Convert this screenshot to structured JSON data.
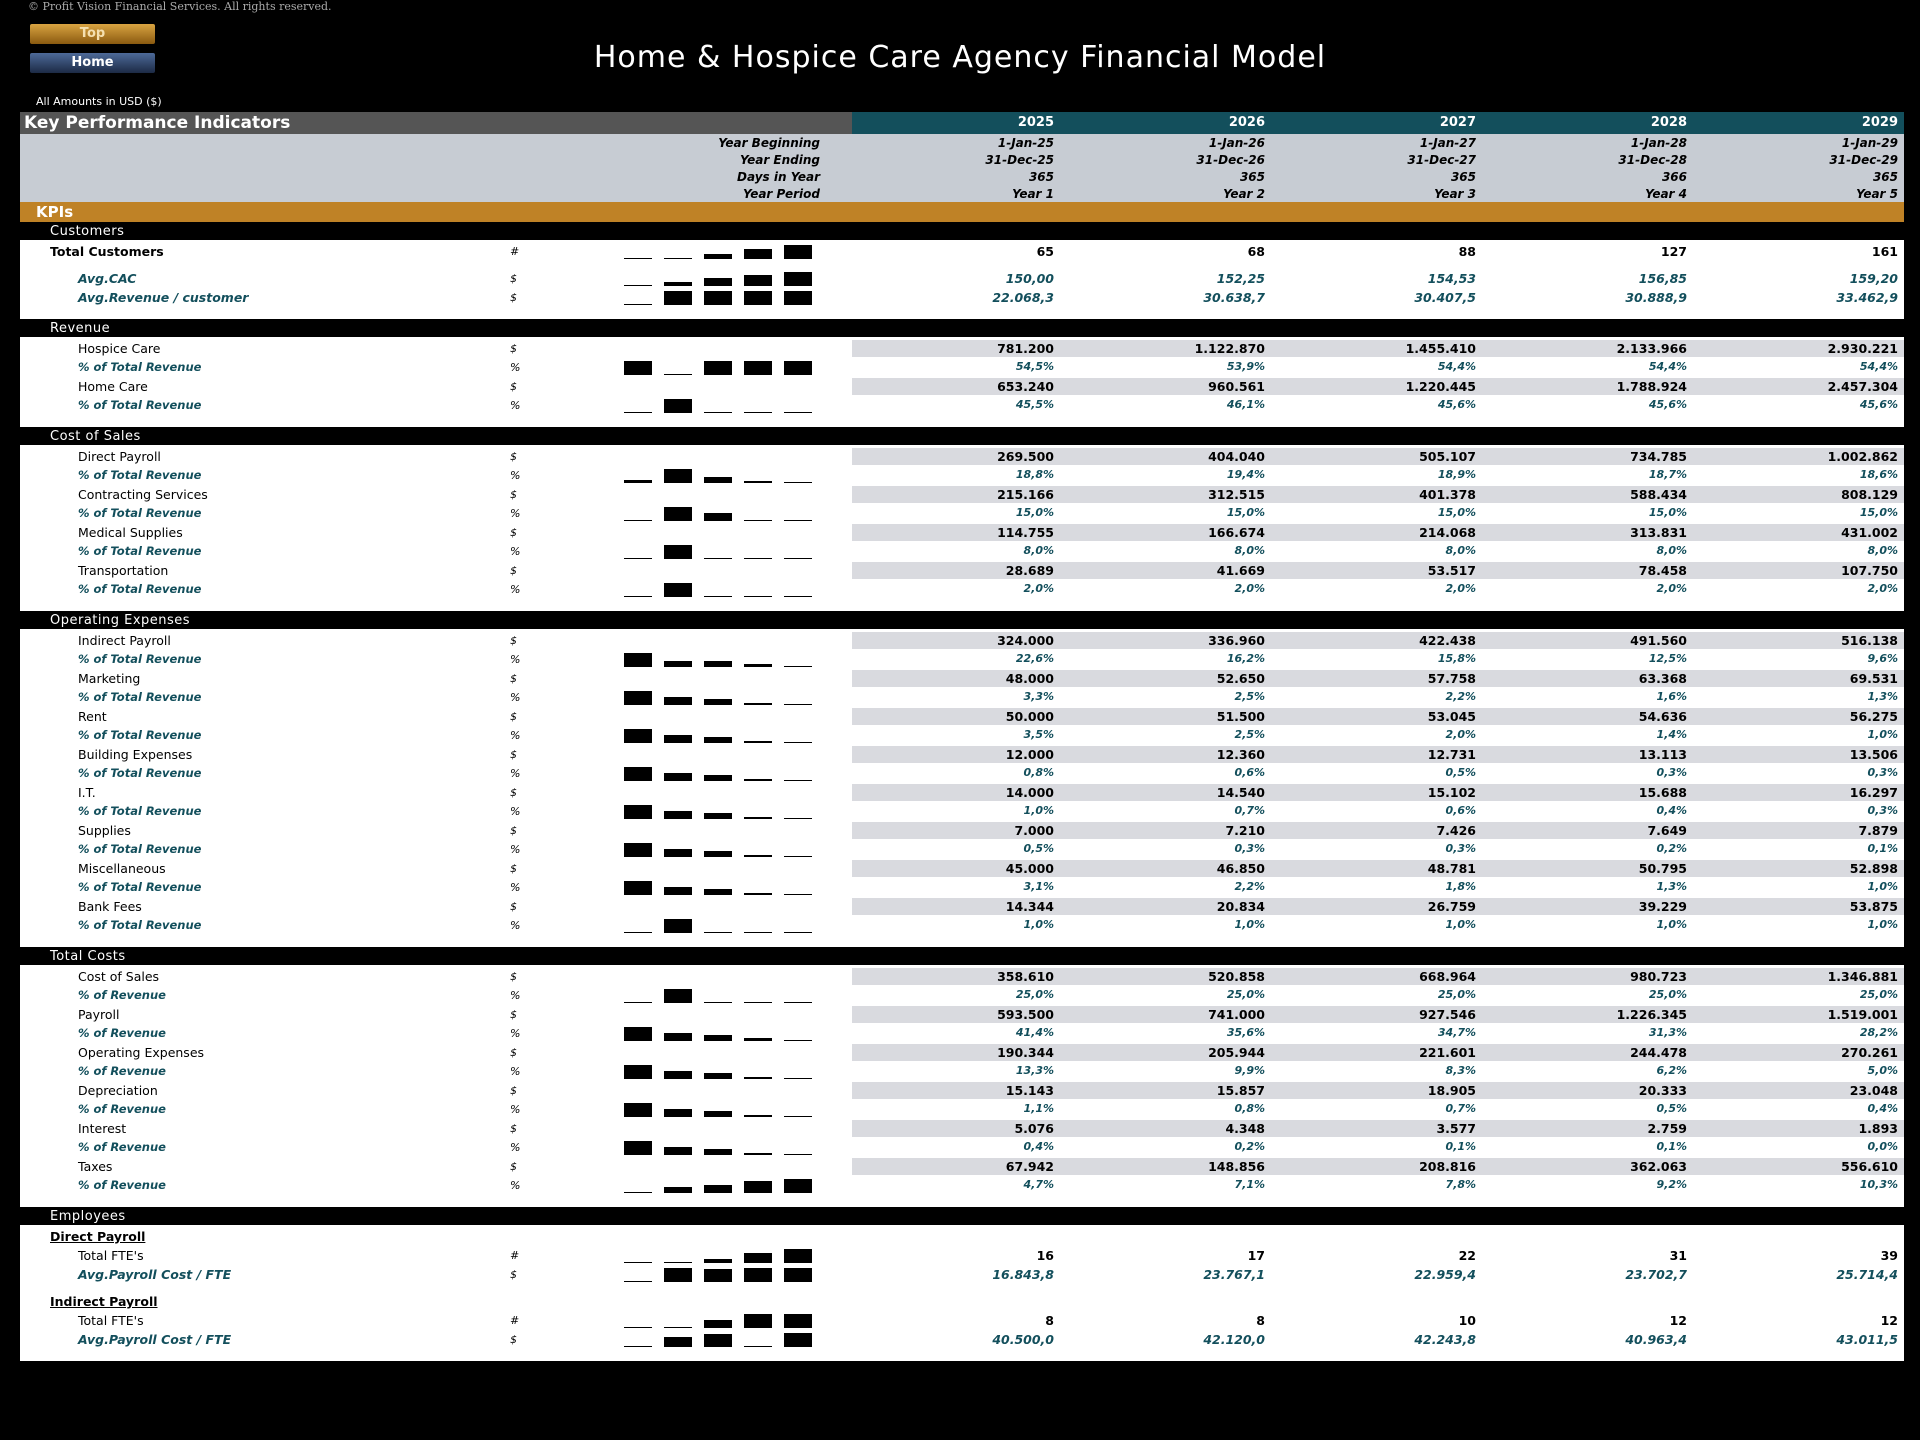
{
  "copyright": "© Profit Vision Financial Services. All rights reserved.",
  "nav": {
    "top": "Top",
    "home": "Home"
  },
  "title": "Home & Hospice Care Agency Financial Model",
  "amounts_label": "All Amounts in  USD ($)",
  "kpi_title": "Key Performance Indicators",
  "years": [
    "2025",
    "2026",
    "2027",
    "2028",
    "2029"
  ],
  "date_rows": [
    {
      "label": "Year Beginning",
      "values": [
        "1-Jan-25",
        "1-Jan-26",
        "1-Jan-27",
        "1-Jan-28",
        "1-Jan-29"
      ]
    },
    {
      "label": "Year Ending",
      "values": [
        "31-Dec-25",
        "31-Dec-26",
        "31-Dec-27",
        "31-Dec-28",
        "31-Dec-29"
      ]
    },
    {
      "label": "Days in Year",
      "values": [
        "365",
        "365",
        "365",
        "366",
        "365"
      ]
    },
    {
      "label": "Year Period",
      "values": [
        "Year 1",
        "Year 2",
        "Year 3",
        "Year 4",
        "Year 5"
      ]
    }
  ],
  "kpis_label": "KPIs",
  "sections": [
    {
      "title": "Customers",
      "rows": [
        {
          "name": "Total Customers",
          "style": "bold",
          "unit": "#",
          "spark": [
            0.05,
            0.1,
            0.35,
            0.7,
            1
          ],
          "values": [
            "65",
            "68",
            "88",
            "127",
            "161"
          ]
        },
        {
          "gap": true
        },
        {
          "name": "Avg.CAC",
          "style": "sub2",
          "unit": "$",
          "spark": [
            0.05,
            0.3,
            0.55,
            0.75,
            1
          ],
          "values": [
            "150,00",
            "152,25",
            "154,53",
            "156,85",
            "159,20"
          ],
          "vstyle": "teal"
        },
        {
          "name": "Avg.Revenue / customer",
          "style": "sub2",
          "unit": "$",
          "spark": [
            0.05,
            1,
            1,
            1,
            1
          ],
          "values": [
            "22.068,3",
            "30.638,7",
            "30.407,5",
            "30.888,9",
            "33.462,9"
          ],
          "vstyle": "teal"
        }
      ]
    },
    {
      "title": "Revenue",
      "rows": [
        {
          "name": "Hospice Care",
          "style": "ind",
          "unit": "$",
          "shaded": true,
          "values": [
            "781.200",
            "1.122.870",
            "1.455.410",
            "2.133.966",
            "2.930.221"
          ]
        },
        {
          "name": "% of Total Revenue",
          "style": "sub",
          "unit": "%",
          "spark": [
            1,
            0.05,
            1,
            1,
            1
          ],
          "values": [
            "54,5%",
            "53,9%",
            "54,4%",
            "54,4%",
            "54,4%"
          ],
          "vstyle": "pct"
        },
        {
          "name": "Home Care",
          "style": "ind",
          "unit": "$",
          "shaded": true,
          "values": [
            "653.240",
            "960.561",
            "1.220.445",
            "1.788.924",
            "2.457.304"
          ]
        },
        {
          "name": "% of Total Revenue",
          "style": "sub",
          "unit": "%",
          "spark": [
            0.05,
            1,
            0.1,
            0.1,
            0.1
          ],
          "values": [
            "45,5%",
            "46,1%",
            "45,6%",
            "45,6%",
            "45,6%"
          ],
          "vstyle": "pct"
        }
      ]
    },
    {
      "title": "Cost of Sales",
      "rows": [
        {
          "name": "Direct Payroll",
          "style": "ind",
          "unit": "$",
          "shaded": true,
          "values": [
            "269.500",
            "404.040",
            "505.107",
            "734.785",
            "1.002.862"
          ]
        },
        {
          "name": "% of Total Revenue",
          "style": "sub",
          "unit": "%",
          "spark": [
            0.2,
            1,
            0.45,
            0.15,
            0.03
          ],
          "values": [
            "18,8%",
            "19,4%",
            "18,9%",
            "18,7%",
            "18,6%"
          ],
          "vstyle": "pct"
        },
        {
          "name": "Contracting Services",
          "style": "ind",
          "unit": "$",
          "shaded": true,
          "values": [
            "215.166",
            "312.515",
            "401.378",
            "588.434",
            "808.129"
          ]
        },
        {
          "name": "% of Total Revenue",
          "style": "sub",
          "unit": "%",
          "spark": [
            0,
            1,
            0.6,
            0,
            0
          ],
          "values": [
            "15,0%",
            "15,0%",
            "15,0%",
            "15,0%",
            "15,0%"
          ],
          "vstyle": "pct"
        },
        {
          "name": "Medical Supplies",
          "style": "ind",
          "unit": "$",
          "shaded": true,
          "values": [
            "114.755",
            "166.674",
            "214.068",
            "313.831",
            "431.002"
          ]
        },
        {
          "name": "% of Total Revenue",
          "style": "sub",
          "unit": "%",
          "spark": [
            0,
            1,
            0,
            0,
            0
          ],
          "values": [
            "8,0%",
            "8,0%",
            "8,0%",
            "8,0%",
            "8,0%"
          ],
          "vstyle": "pct"
        },
        {
          "name": "Transportation",
          "style": "ind",
          "unit": "$",
          "shaded": true,
          "values": [
            "28.689",
            "41.669",
            "53.517",
            "78.458",
            "107.750"
          ]
        },
        {
          "name": "% of Total Revenue",
          "style": "sub",
          "unit": "%",
          "spark": [
            0,
            1,
            0,
            0,
            0
          ],
          "values": [
            "2,0%",
            "2,0%",
            "2,0%",
            "2,0%",
            "2,0%"
          ],
          "vstyle": "pct"
        }
      ]
    },
    {
      "title": "Operating Expenses",
      "rows": [
        {
          "name": "Indirect Payroll",
          "style": "ind",
          "unit": "$",
          "shaded": true,
          "values": [
            "324.000",
            "336.960",
            "422.438",
            "491.560",
            "516.138"
          ]
        },
        {
          "name": "% of Total Revenue",
          "style": "sub",
          "unit": "%",
          "spark": [
            1,
            0.45,
            0.4,
            0.2,
            0.05
          ],
          "values": [
            "22,6%",
            "16,2%",
            "15,8%",
            "12,5%",
            "9,6%"
          ],
          "vstyle": "pct"
        },
        {
          "name": "Marketing",
          "style": "ind",
          "unit": "$",
          "shaded": true,
          "values": [
            "48.000",
            "52.650",
            "57.758",
            "63.368",
            "69.531"
          ]
        },
        {
          "name": "% of Total Revenue",
          "style": "sub",
          "unit": "%",
          "spark": [
            1,
            0.55,
            0.45,
            0.15,
            0.05
          ],
          "values": [
            "3,3%",
            "2,5%",
            "2,2%",
            "1,6%",
            "1,3%"
          ],
          "vstyle": "pct"
        },
        {
          "name": "Rent",
          "style": "ind",
          "unit": "$",
          "shaded": true,
          "values": [
            "50.000",
            "51.500",
            "53.045",
            "54.636",
            "56.275"
          ]
        },
        {
          "name": "% of Total Revenue",
          "style": "sub",
          "unit": "%",
          "spark": [
            1,
            0.55,
            0.4,
            0.15,
            0.05
          ],
          "values": [
            "3,5%",
            "2,5%",
            "2,0%",
            "1,4%",
            "1,0%"
          ],
          "vstyle": "pct"
        },
        {
          "name": "Building Expenses",
          "style": "ind",
          "unit": "$",
          "shaded": true,
          "values": [
            "12.000",
            "12.360",
            "12.731",
            "13.113",
            "13.506"
          ]
        },
        {
          "name": "% of Total Revenue",
          "style": "sub",
          "unit": "%",
          "spark": [
            1,
            0.55,
            0.4,
            0.15,
            0.05
          ],
          "values": [
            "0,8%",
            "0,6%",
            "0,5%",
            "0,3%",
            "0,3%"
          ],
          "vstyle": "pct"
        },
        {
          "name": "I.T.",
          "style": "ind",
          "unit": "$",
          "shaded": true,
          "values": [
            "14.000",
            "14.540",
            "15.102",
            "15.688",
            "16.297"
          ]
        },
        {
          "name": "% of Total Revenue",
          "style": "sub",
          "unit": "%",
          "spark": [
            1,
            0.55,
            0.4,
            0.15,
            0.05
          ],
          "values": [
            "1,0%",
            "0,7%",
            "0,6%",
            "0,4%",
            "0,3%"
          ],
          "vstyle": "pct"
        },
        {
          "name": "Supplies",
          "style": "ind",
          "unit": "$",
          "shaded": true,
          "values": [
            "7.000",
            "7.210",
            "7.426",
            "7.649",
            "7.879"
          ]
        },
        {
          "name": "% of Total Revenue",
          "style": "sub",
          "unit": "%",
          "spark": [
            1,
            0.55,
            0.4,
            0.15,
            0.05
          ],
          "values": [
            "0,5%",
            "0,3%",
            "0,3%",
            "0,2%",
            "0,1%"
          ],
          "vstyle": "pct"
        },
        {
          "name": "Miscellaneous",
          "style": "ind",
          "unit": "$",
          "shaded": true,
          "values": [
            "45.000",
            "46.850",
            "48.781",
            "50.795",
            "52.898"
          ]
        },
        {
          "name": "% of Total Revenue",
          "style": "sub",
          "unit": "%",
          "spark": [
            1,
            0.55,
            0.4,
            0.15,
            0.05
          ],
          "values": [
            "3,1%",
            "2,2%",
            "1,8%",
            "1,3%",
            "1,0%"
          ],
          "vstyle": "pct"
        },
        {
          "name": "Bank Fees",
          "style": "ind",
          "unit": "$",
          "shaded": true,
          "values": [
            "14.344",
            "20.834",
            "26.759",
            "39.229",
            "53.875"
          ]
        },
        {
          "name": "% of Total Revenue",
          "style": "sub",
          "unit": "%",
          "spark": [
            0,
            1,
            0,
            0,
            0
          ],
          "values": [
            "1,0%",
            "1,0%",
            "1,0%",
            "1,0%",
            "1,0%"
          ],
          "vstyle": "pct"
        }
      ]
    },
    {
      "title": "Total Costs",
      "rows": [
        {
          "name": "Cost of Sales",
          "style": "ind",
          "unit": "$",
          "shaded": true,
          "values": [
            "358.610",
            "520.858",
            "668.964",
            "980.723",
            "1.346.881"
          ]
        },
        {
          "name": "% of Revenue",
          "style": "sub",
          "unit": "%",
          "spark": [
            0,
            1,
            0,
            0,
            0
          ],
          "values": [
            "25,0%",
            "25,0%",
            "25,0%",
            "25,0%",
            "25,0%"
          ],
          "vstyle": "pct"
        },
        {
          "name": "Payroll",
          "style": "ind",
          "unit": "$",
          "shaded": true,
          "values": [
            "593.500",
            "741.000",
            "927.546",
            "1.226.345",
            "1.519.001"
          ]
        },
        {
          "name": "% of Revenue",
          "style": "sub",
          "unit": "%",
          "spark": [
            1,
            0.55,
            0.45,
            0.2,
            0.05
          ],
          "values": [
            "41,4%",
            "35,6%",
            "34,7%",
            "31,3%",
            "28,2%"
          ],
          "vstyle": "pct"
        },
        {
          "name": "Operating Expenses",
          "style": "ind",
          "unit": "$",
          "shaded": true,
          "values": [
            "190.344",
            "205.944",
            "221.601",
            "244.478",
            "270.261"
          ]
        },
        {
          "name": "% of Revenue",
          "style": "sub",
          "unit": "%",
          "spark": [
            1,
            0.55,
            0.4,
            0.15,
            0.05
          ],
          "values": [
            "13,3%",
            "9,9%",
            "8,3%",
            "6,2%",
            "5,0%"
          ],
          "vstyle": "pct"
        },
        {
          "name": "Depreciation",
          "style": "ind",
          "unit": "$",
          "shaded": true,
          "values": [
            "15.143",
            "15.857",
            "18.905",
            "20.333",
            "23.048"
          ]
        },
        {
          "name": "% of Revenue",
          "style": "sub",
          "unit": "%",
          "spark": [
            1,
            0.55,
            0.4,
            0.15,
            0.05
          ],
          "values": [
            "1,1%",
            "0,8%",
            "0,7%",
            "0,5%",
            "0,4%"
          ],
          "vstyle": "pct"
        },
        {
          "name": "Interest",
          "style": "ind",
          "unit": "$",
          "shaded": true,
          "values": [
            "5.076",
            "4.348",
            "3.577",
            "2.759",
            "1.893"
          ]
        },
        {
          "name": "% of Revenue",
          "style": "sub",
          "unit": "%",
          "spark": [
            1,
            0.55,
            0.4,
            0.15,
            0.05
          ],
          "values": [
            "0,4%",
            "0,2%",
            "0,1%",
            "0,1%",
            "0,0%"
          ],
          "vstyle": "pct"
        },
        {
          "name": "Taxes",
          "style": "ind",
          "unit": "$",
          "shaded": true,
          "values": [
            "67.942",
            "148.856",
            "208.816",
            "362.063",
            "556.610"
          ]
        },
        {
          "name": "% of Revenue",
          "style": "sub",
          "unit": "%",
          "spark": [
            0.05,
            0.45,
            0.6,
            0.85,
            1
          ],
          "values": [
            "4,7%",
            "7,1%",
            "7,8%",
            "9,2%",
            "10,3%"
          ],
          "vstyle": "pct"
        }
      ]
    },
    {
      "title": "Employees",
      "rows": [
        {
          "name": "Direct Payroll",
          "style": "u",
          "unit": "",
          "values": [
            "",
            "",
            "",
            "",
            ""
          ]
        },
        {
          "name": "Total FTE's",
          "style": "ind",
          "unit": "#",
          "spark": [
            0.05,
            0.1,
            0.3,
            0.7,
            1
          ],
          "values": [
            "16",
            "17",
            "22",
            "31",
            "39"
          ]
        },
        {
          "name": "Avg.Payroll Cost / FTE",
          "style": "sub2",
          "unit": "$",
          "spark": [
            0.05,
            1,
            0.9,
            1,
            1
          ],
          "values": [
            "16.843,8",
            "23.767,1",
            "22.959,4",
            "23.702,7",
            "25.714,4"
          ],
          "vstyle": "teal"
        },
        {
          "gap": true
        },
        {
          "name": "Indirect Payroll",
          "style": "u",
          "unit": "",
          "values": [
            "",
            "",
            "",
            "",
            ""
          ]
        },
        {
          "name": "Total FTE's",
          "style": "ind",
          "unit": "#",
          "spark": [
            0.05,
            0.1,
            0.55,
            1,
            1
          ],
          "values": [
            "8",
            "8",
            "10",
            "12",
            "12"
          ]
        },
        {
          "name": "Avg.Payroll Cost / FTE",
          "style": "sub2",
          "unit": "$",
          "spark": [
            0.05,
            0.7,
            0.9,
            0.1,
            1
          ],
          "values": [
            "40.500,0",
            "42.120,0",
            "42.243,8",
            "40.963,4",
            "43.011,5"
          ],
          "vstyle": "teal"
        }
      ]
    }
  ]
}
